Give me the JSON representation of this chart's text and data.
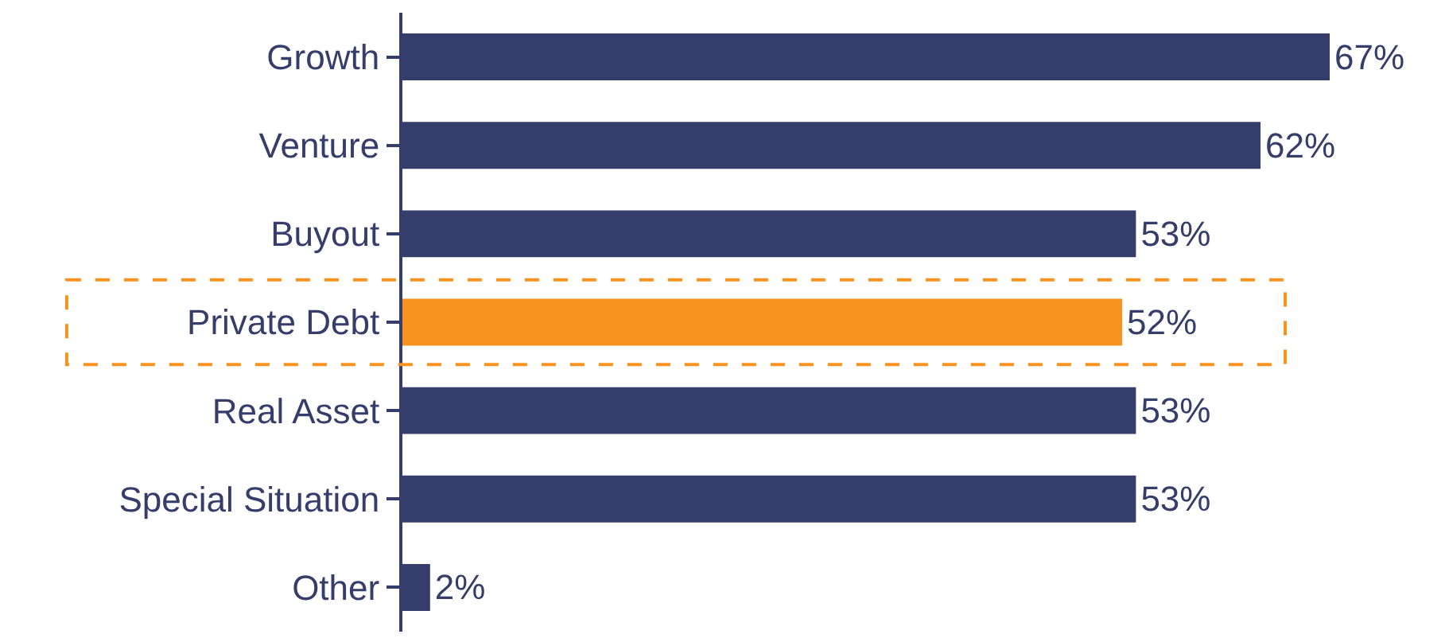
{
  "chart_data": {
    "type": "bar",
    "orientation": "horizontal",
    "categories": [
      "Growth",
      "Venture",
      "Buyout",
      "Private Debt",
      "Real Asset",
      "Special Situation",
      "Other"
    ],
    "values": [
      67,
      62,
      53,
      52,
      53,
      53,
      2
    ],
    "colors": [
      "#353d6b",
      "#353d6b",
      "#353d6b",
      "#f7931e",
      "#353d6b",
      "#353d6b",
      "#353d6b"
    ],
    "value_labels": [
      "67%",
      "62%",
      "53%",
      "52%",
      "53%",
      "53%",
      "2%"
    ],
    "legend": false
  }
}
